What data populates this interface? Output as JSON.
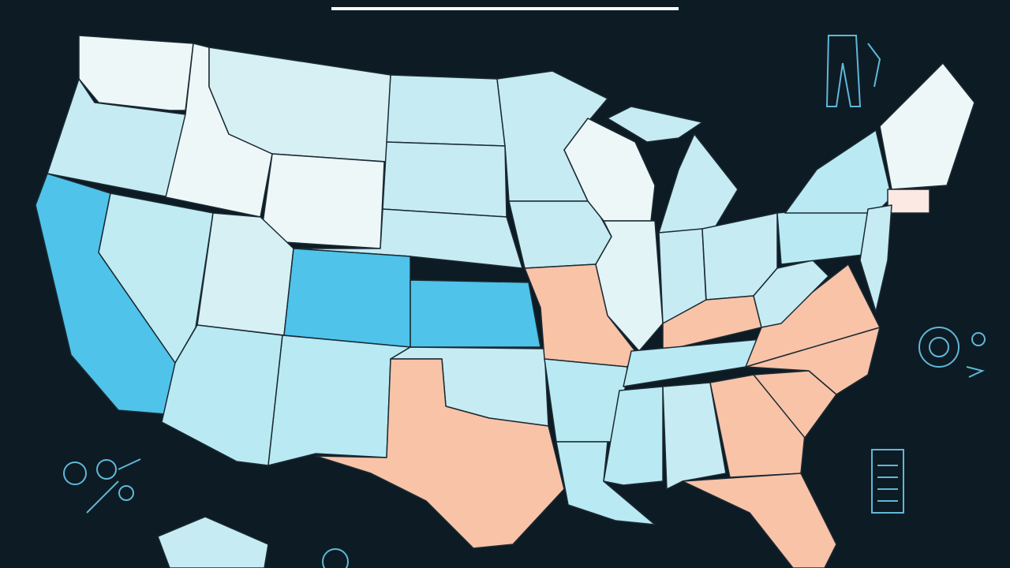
{
  "map": {
    "regions": [
      {
        "color": "#edf7f8"
      },
      {
        "color": "#c6ebf3"
      },
      {
        "color": "#edf7f8"
      },
      {
        "color": "#d6f0f4"
      },
      {
        "color": "#edf7f8"
      },
      {
        "color": "#c6ebf3"
      },
      {
        "color": "#c6ebf3"
      },
      {
        "color": "#c6ebf3"
      },
      {
        "color": "#4fc3ea"
      },
      {
        "color": "#c0ebf3"
      },
      {
        "color": "#d6f0f4"
      },
      {
        "color": "#b9eaf4"
      },
      {
        "color": "#4fc3ea"
      },
      {
        "color": "#4fc3ea"
      },
      {
        "color": "#b9eaf4"
      },
      {
        "color": "#c6ebf3"
      },
      {
        "color": "#f9c3a8"
      },
      {
        "color": "#c6ebf3"
      },
      {
        "color": "#c6ebf3"
      },
      {
        "color": "#f9c3a8"
      },
      {
        "color": "#b9eaf4"
      },
      {
        "color": "#b9eaf4"
      },
      {
        "color": "#edf7f8"
      },
      {
        "color": "#e3f4f7"
      },
      {
        "color": "#c6ebf3"
      },
      {
        "color": "#c6ebf3"
      },
      {
        "color": "#c6ebf3"
      },
      {
        "color": "#c6ebf3"
      },
      {
        "color": "#f9c3a8"
      },
      {
        "color": "#b9eaf4"
      },
      {
        "color": "#b9eaf4"
      },
      {
        "color": "#c6ebf3"
      },
      {
        "color": "#f9c3a8"
      },
      {
        "color": "#f9c3a8"
      },
      {
        "color": "#f9c3a8"
      },
      {
        "color": "#f9c3a8"
      },
      {
        "color": "#f9c3a8"
      },
      {
        "color": "#c6ebf3"
      },
      {
        "color": "#b9eaf4"
      },
      {
        "color": "#b9eaf4"
      },
      {
        "color": "#edf7f8"
      },
      {
        "color": "#fde9e3"
      },
      {
        "color": "#c6ebf3"
      },
      {
        "color": "#c6ebf3"
      }
    ]
  }
}
